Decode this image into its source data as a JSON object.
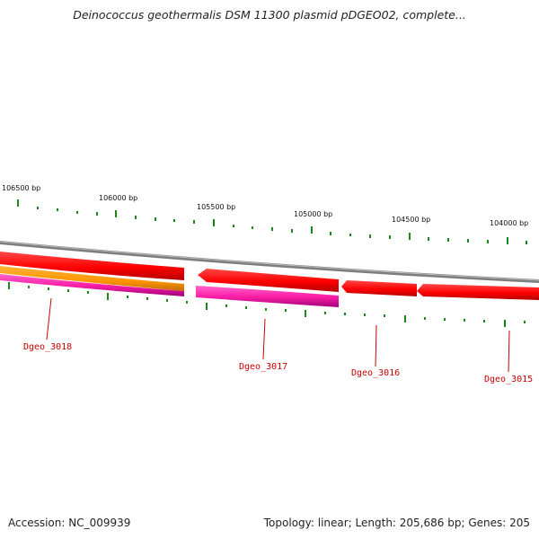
{
  "title": "Deinococcus geothermalis DSM 11300 plasmid pDGEO02, complete...",
  "ruler_labels": [
    {
      "name": "tick-106500",
      "text": "106500 bp"
    },
    {
      "name": "tick-106000",
      "text": "106000 bp"
    },
    {
      "name": "tick-105500",
      "text": "105500 bp"
    },
    {
      "name": "tick-105000",
      "text": "105000 bp"
    },
    {
      "name": "tick-104500",
      "text": "104500 bp"
    },
    {
      "name": "tick-104000",
      "text": "104000 bp"
    }
  ],
  "genes": [
    {
      "name": "gene-label-dgeo-3018",
      "text": "Dgeo_3018"
    },
    {
      "name": "gene-label-dgeo-3017",
      "text": "Dgeo_3017"
    },
    {
      "name": "gene-label-dgeo-3016",
      "text": "Dgeo_3016"
    },
    {
      "name": "gene-label-dgeo-3015",
      "text": "Dgeo_3015"
    }
  ],
  "colors": {
    "backbone": "#8a8a8a",
    "ruler_ticks": "#1a8a1a",
    "gene_red": "#ff0000",
    "gene_orange": "#ff9900",
    "gene_magenta": "#ff1aaa",
    "label_red": "#cc0000"
  },
  "footer": {
    "accession": "Accession: NC_009939",
    "summary": "Topology: linear; Length: 205,686 bp; Genes: 205"
  }
}
